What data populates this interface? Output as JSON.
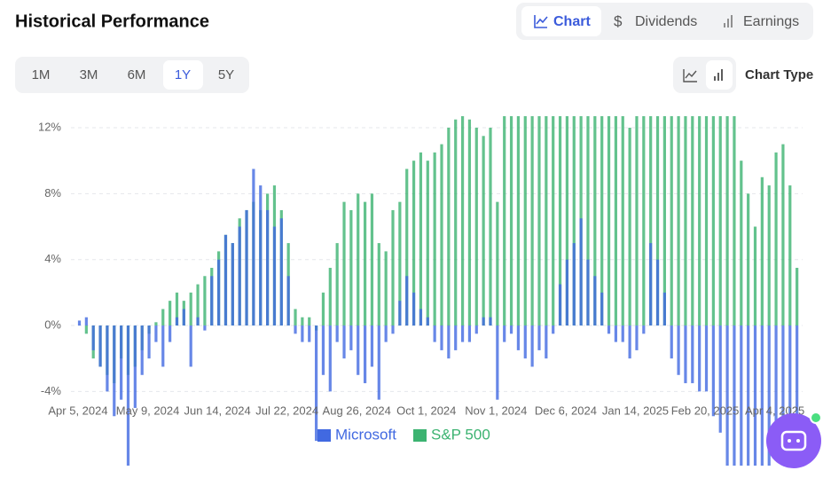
{
  "header": {
    "title": "Historical Performance"
  },
  "tabs": [
    "Chart",
    "Dividends",
    "Earnings"
  ],
  "ranges": [
    "1M",
    "3M",
    "6M",
    "1Y",
    "5Y"
  ],
  "chart_type_label": "Chart Type",
  "chart_data": {
    "type": "bar",
    "categories": [
      "Apr 5, 2024",
      null,
      null,
      null,
      null,
      null,
      null,
      null,
      null,
      null,
      "May 9, 2024",
      null,
      null,
      null,
      null,
      null,
      null,
      null,
      null,
      null,
      "Jun 14, 2024",
      null,
      null,
      null,
      null,
      null,
      null,
      null,
      null,
      null,
      "Jul 22, 2024",
      null,
      null,
      null,
      null,
      null,
      null,
      null,
      null,
      null,
      "Aug 26, 2024",
      null,
      null,
      null,
      null,
      null,
      null,
      null,
      null,
      null,
      "Oct 1, 2024",
      null,
      null,
      null,
      null,
      null,
      null,
      null,
      null,
      null,
      "Nov 1, 2024",
      null,
      null,
      null,
      null,
      null,
      null,
      null,
      null,
      null,
      "Dec 6, 2024",
      null,
      null,
      null,
      null,
      null,
      null,
      null,
      null,
      null,
      "Jan 14, 2025",
      null,
      null,
      null,
      null,
      null,
      null,
      null,
      null,
      null,
      "Feb 20, 2025",
      null,
      null,
      null,
      null,
      null,
      null,
      null,
      null,
      null,
      "Apr 4, 2025",
      null,
      null,
      null
    ],
    "series": [
      {
        "name": "S&P 500",
        "color": "#3cb371",
        "values": [
          0,
          -0.5,
          -2,
          -2.5,
          -3,
          -3.5,
          -2,
          -3,
          -2.5,
          -1.5,
          -0.5,
          0.2,
          1,
          1.5,
          2,
          1.5,
          2,
          2.5,
          3,
          3.5,
          4.5,
          5.5,
          5,
          6.5,
          7,
          7.5,
          7,
          8,
          8.5,
          7,
          5,
          1,
          0.5,
          0.5,
          -0.3,
          2,
          3.5,
          5,
          7.5,
          7,
          8,
          7.5,
          8,
          5,
          4.5,
          7,
          7.5,
          9.5,
          10,
          10.5,
          10,
          10.5,
          11,
          12,
          12.5,
          12.7,
          12.5,
          12,
          11.5,
          12,
          7.5,
          12.7,
          12.7,
          12.7,
          12.7,
          12.7,
          12.7,
          12.7,
          12.7,
          12.7,
          12.7,
          12.7,
          12.7,
          12.7,
          12.7,
          12.7,
          12.7,
          12.7,
          12.7,
          12,
          12.7,
          12.7,
          12.7,
          12.7,
          12.7,
          12.7,
          12.7,
          12.7,
          12.7,
          12.7,
          12.7,
          12.7,
          12.7,
          12.7,
          12.7,
          10,
          8,
          6,
          9,
          8.5,
          10.5,
          11,
          8.5,
          3.5
        ]
      },
      {
        "name": "Microsoft",
        "color": "#4169e1",
        "values": [
          0.3,
          0.5,
          -1.5,
          -2.5,
          -4,
          -5.5,
          -4.5,
          -8.5,
          -5,
          -3,
          -2,
          -1,
          -2.5,
          -1,
          0.5,
          1,
          -2.5,
          0.5,
          -0.3,
          3,
          4,
          5.5,
          5,
          6,
          7,
          9.5,
          8.5,
          7,
          6,
          6.5,
          3,
          -0.5,
          -1,
          -1,
          -7,
          -3,
          -4,
          -1,
          -2,
          -1.5,
          -3,
          -3.5,
          -2.5,
          -4.5,
          -1,
          -0.5,
          1.5,
          3,
          2,
          1,
          0.5,
          -1,
          -1.5,
          -2,
          -1.5,
          -1,
          -1,
          -0.5,
          0.5,
          0.5,
          -4.5,
          -1,
          -0.5,
          -1.5,
          -2,
          -2.5,
          -1.5,
          -2,
          -0.5,
          2.5,
          4,
          5,
          6.5,
          4,
          3,
          2,
          -0.5,
          -1,
          -1,
          -2,
          -1.5,
          -0.5,
          5,
          4,
          2,
          -2,
          -3,
          -3.5,
          -3.5,
          -4,
          -4,
          -5.5,
          -6.5,
          -8.5,
          -8.5,
          -8.5,
          -8.5,
          -8.5,
          -8.5,
          -8.5,
          -6,
          -7,
          -8,
          -8.5
        ]
      }
    ],
    "ylim": [
      -8.5,
      12.7
    ],
    "yticks": [
      {
        "value": -4,
        "label": "-4%"
      },
      {
        "value": 0,
        "label": "0%"
      },
      {
        "value": 4,
        "label": "4%"
      },
      {
        "value": 8,
        "label": "8%"
      },
      {
        "value": 12,
        "label": "12%"
      }
    ],
    "grid": true,
    "legend": "bottom"
  }
}
